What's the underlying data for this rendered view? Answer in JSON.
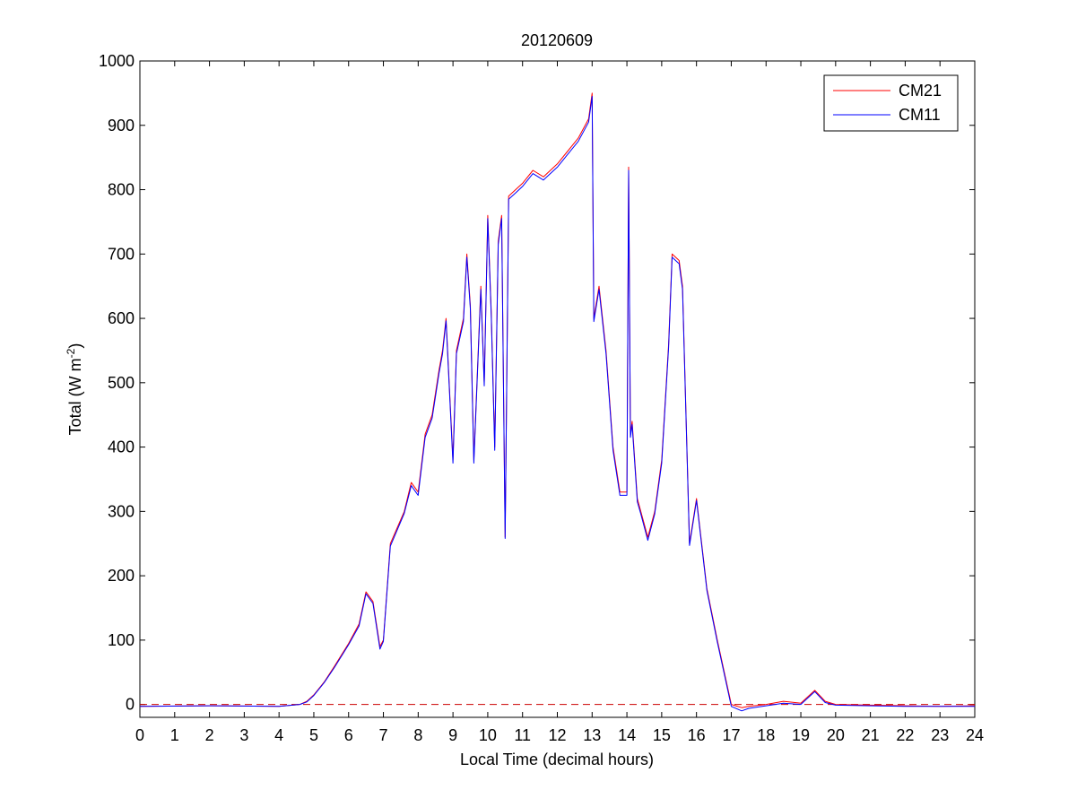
{
  "chart_data": {
    "type": "line",
    "title": "20120609",
    "xlabel": "Local Time (decimal hours)",
    "ylabel": {
      "main": "Total (W m",
      "sup": "-2",
      "close": ")"
    },
    "xlim": [
      0,
      24
    ],
    "ylim": [
      -20,
      1000
    ],
    "xticks": [
      0,
      1,
      2,
      3,
      4,
      5,
      6,
      7,
      8,
      9,
      10,
      11,
      12,
      13,
      14,
      15,
      16,
      17,
      18,
      19,
      20,
      21,
      22,
      23,
      24
    ],
    "yticks": [
      0,
      100,
      200,
      300,
      400,
      500,
      600,
      700,
      800,
      900,
      1000
    ],
    "grid": false,
    "legend_position": "top-right",
    "reference_line": {
      "y": 0,
      "style": "dashed",
      "color": "#cc0000"
    },
    "series": [
      {
        "name": "CM21",
        "color": "#ff0000",
        "x": [
          0,
          2,
          4,
          4.6,
          4.8,
          5,
          5.3,
          5.6,
          6,
          6.3,
          6.5,
          6.7,
          6.9,
          7,
          7.2,
          7.6,
          7.8,
          8,
          8.2,
          8.4,
          8.6,
          8.7,
          8.8,
          9,
          9.1,
          9.3,
          9.4,
          9.5,
          9.6,
          9.8,
          9.9,
          10,
          10.1,
          10.2,
          10.3,
          10.4,
          10.5,
          10.6,
          10.8,
          11,
          11.3,
          11.6,
          12,
          12.3,
          12.6,
          12.9,
          13,
          13.05,
          13.2,
          13.4,
          13.6,
          13.8,
          14,
          14.05,
          14.1,
          14.15,
          14.3,
          14.4,
          14.6,
          14.8,
          15,
          15.2,
          15.3,
          15.5,
          15.6,
          15.8,
          16,
          16.3,
          16.6,
          17,
          17.3,
          17.5,
          18,
          18.5,
          19,
          19.4,
          19.7,
          20,
          21,
          22,
          23,
          24
        ],
        "y": [
          -3,
          -2,
          -3,
          0,
          5,
          15,
          35,
          60,
          95,
          125,
          175,
          160,
          90,
          100,
          250,
          300,
          345,
          330,
          420,
          450,
          520,
          550,
          600,
          380,
          550,
          600,
          700,
          620,
          380,
          650,
          500,
          760,
          610,
          400,
          720,
          760,
          260,
          790,
          800,
          810,
          830,
          820,
          840,
          860,
          880,
          910,
          950,
          600,
          650,
          550,
          400,
          330,
          330,
          835,
          420,
          440,
          320,
          300,
          260,
          300,
          380,
          560,
          700,
          690,
          650,
          250,
          320,
          180,
          100,
          0,
          -5,
          -3,
          0,
          5,
          2,
          22,
          5,
          0,
          -1,
          -2,
          -3,
          -2
        ]
      },
      {
        "name": "CM11",
        "color": "#0000ff",
        "x": [
          0,
          2,
          4,
          4.6,
          4.8,
          5,
          5.3,
          5.6,
          6,
          6.3,
          6.5,
          6.7,
          6.9,
          7,
          7.2,
          7.6,
          7.8,
          8,
          8.2,
          8.4,
          8.6,
          8.7,
          8.8,
          9,
          9.1,
          9.3,
          9.4,
          9.5,
          9.6,
          9.8,
          9.9,
          10,
          10.1,
          10.2,
          10.3,
          10.4,
          10.5,
          10.6,
          10.8,
          11,
          11.3,
          11.6,
          12,
          12.3,
          12.6,
          12.9,
          13,
          13.05,
          13.2,
          13.4,
          13.6,
          13.8,
          14,
          14.05,
          14.1,
          14.15,
          14.3,
          14.4,
          14.6,
          14.8,
          15,
          15.2,
          15.3,
          15.5,
          15.6,
          15.8,
          16,
          16.3,
          16.6,
          17,
          17.3,
          17.5,
          18,
          18.5,
          19,
          19.4,
          19.7,
          20,
          21,
          22,
          23,
          24
        ],
        "y": [
          -3,
          -2,
          -3,
          0,
          4,
          14,
          34,
          58,
          93,
          122,
          172,
          157,
          86,
          98,
          246,
          297,
          340,
          325,
          415,
          445,
          515,
          545,
          596,
          375,
          545,
          595,
          695,
          615,
          375,
          645,
          495,
          755,
          605,
          395,
          715,
          755,
          258,
          785,
          795,
          805,
          825,
          815,
          835,
          855,
          875,
          905,
          945,
          595,
          645,
          545,
          395,
          325,
          325,
          830,
          415,
          435,
          315,
          296,
          255,
          296,
          375,
          555,
          695,
          685,
          645,
          247,
          317,
          177,
          97,
          -3,
          -10,
          -6,
          -2,
          2,
          0,
          20,
          3,
          -1,
          -2,
          -3,
          -3,
          -3
        ]
      }
    ]
  }
}
